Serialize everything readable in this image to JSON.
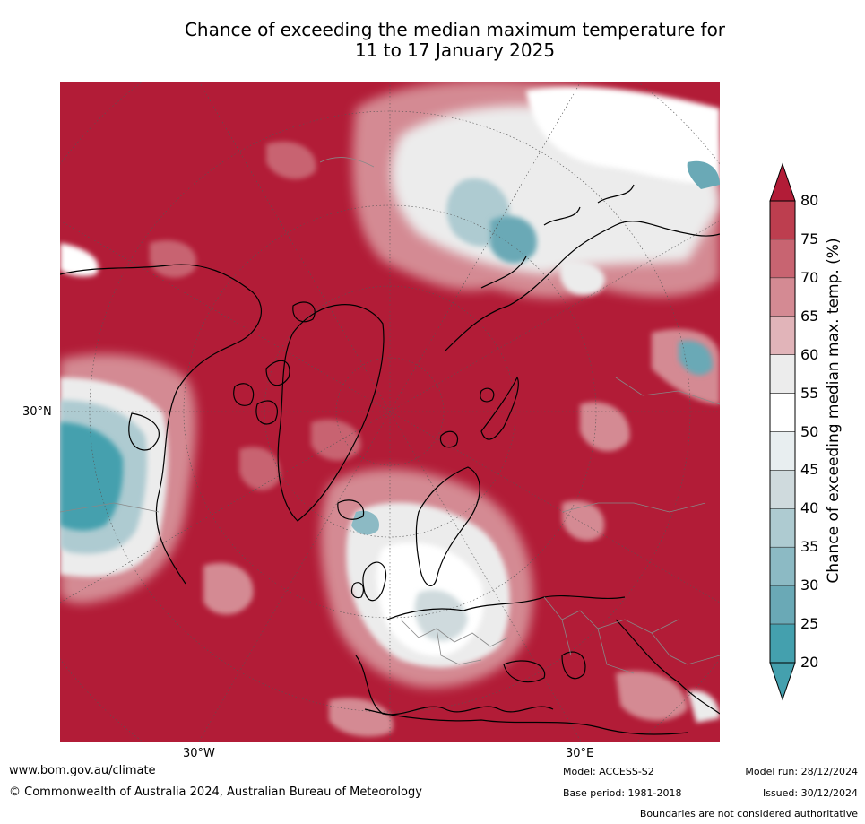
{
  "title": {
    "line1": "Chance of exceeding the median maximum temperature for",
    "line2": "11 to 17 January 2025"
  },
  "map": {
    "projection": "north polar stereographic",
    "lat_label": "30°N",
    "lon_labels": [
      "30°W",
      "30°E"
    ],
    "background_color": "#b21c37"
  },
  "colorbar": {
    "label": "Chance of exceeding median max. temp. (%)",
    "ticks": [
      "80",
      "75",
      "70",
      "65",
      "60",
      "55",
      "50",
      "45",
      "40",
      "35",
      "30",
      "25",
      "20"
    ],
    "colors": [
      "#b21c37",
      "#bd3e4f",
      "#c86471",
      "#d48a93",
      "#e1b4b9",
      "#ececec",
      "#ffffff",
      "#e8eef0",
      "#cfdadd",
      "#aecbd1",
      "#8cbac4",
      "#6aa9b6",
      "#44a0ae"
    ]
  },
  "footer": {
    "website": "www.bom.gov.au/climate",
    "copyright": "© Commonwealth of Australia 2024, Australian Bureau of Meteorology",
    "model": "Model: ACCESS-S2",
    "base_period": "Base period: 1981-2018",
    "model_run": "Model run: 28/12/2024",
    "issued": "Issued: 30/12/2024",
    "disclaimer": "Boundaries are not considered authoritative"
  }
}
